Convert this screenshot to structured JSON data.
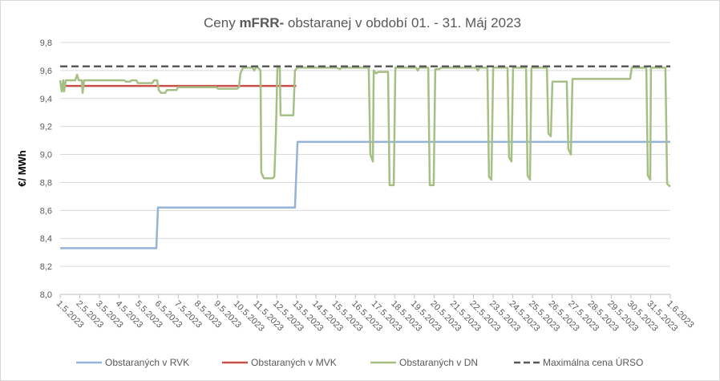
{
  "chart_data": {
    "type": "line",
    "title": [
      "Ceny",
      "mFRR-",
      "obstaranej v období 01. - 31. Máj 2023"
    ],
    "y_label": "€/ MWh",
    "xlim": [
      1,
      32
    ],
    "xticks": [
      {
        "value": 1,
        "label": "1.5.2023"
      },
      {
        "value": 2,
        "label": "2.5.2023"
      },
      {
        "value": 3,
        "label": "3.5.2023"
      },
      {
        "value": 4,
        "label": "4.5.2023"
      },
      {
        "value": 5,
        "label": "5.5.2023"
      },
      {
        "value": 6,
        "label": "6.5.2023"
      },
      {
        "value": 7,
        "label": "7.5.2023"
      },
      {
        "value": 8,
        "label": "8.5.2023"
      },
      {
        "value": 9,
        "label": "9.5.2023"
      },
      {
        "value": 10,
        "label": "10.5.2023"
      },
      {
        "value": 11,
        "label": "11.5.2023"
      },
      {
        "value": 12,
        "label": "12.5.2023"
      },
      {
        "value": 13,
        "label": "13.5.2023"
      },
      {
        "value": 14,
        "label": "14.5.2023"
      },
      {
        "value": 15,
        "label": "15.5.2023"
      },
      {
        "value": 16,
        "label": "16.5.2023"
      },
      {
        "value": 17,
        "label": "17.5.2023"
      },
      {
        "value": 18,
        "label": "18.5.2023"
      },
      {
        "value": 19,
        "label": "19.5.2023"
      },
      {
        "value": 20,
        "label": "20.5.2023"
      },
      {
        "value": 21,
        "label": "21.5.2023"
      },
      {
        "value": 22,
        "label": "22.5.2023"
      },
      {
        "value": 23,
        "label": "23.5.2023"
      },
      {
        "value": 24,
        "label": "24.5.2023"
      },
      {
        "value": 25,
        "label": "25.5.2023"
      },
      {
        "value": 26,
        "label": "26.5.2023"
      },
      {
        "value": 27,
        "label": "27.5.2023"
      },
      {
        "value": 28,
        "label": "28.5.2023"
      },
      {
        "value": 29,
        "label": "29.5.2023"
      },
      {
        "value": 30,
        "label": "30.5.2023"
      },
      {
        "value": 31,
        "label": "31.5.2023"
      },
      {
        "value": 32,
        "label": "1.6.2023"
      }
    ],
    "ylim": [
      8,
      9.8
    ],
    "yticks": [
      {
        "value": 8,
        "label": "8,0"
      },
      {
        "value": 8.2,
        "label": "8,2"
      },
      {
        "value": 8.4,
        "label": "8,4"
      },
      {
        "value": 8.6,
        "label": "8,6"
      },
      {
        "value": 8.8,
        "label": "8,8"
      },
      {
        "value": 9,
        "label": "9,0"
      },
      {
        "value": 9.2,
        "label": "9,2"
      },
      {
        "value": 9.4,
        "label": "9,4"
      },
      {
        "value": 9.6,
        "label": "9,6"
      },
      {
        "value": 9.8,
        "label": "9,8"
      }
    ],
    "grid": true,
    "legend": "bottom",
    "series": [
      {
        "name": "Obstaraných v RVK",
        "color": "#95b3d7",
        "x": [
          1,
          5.89,
          5.97,
          12.93,
          13.06,
          32
        ],
        "values": [
          8.33,
          8.33,
          8.62,
          8.62,
          9.09,
          9.09
        ]
      },
      {
        "name": "Obstaraných v MVK",
        "color": "#c9504a",
        "x": [
          1,
          13
        ],
        "values": [
          9.49,
          9.49
        ]
      },
      {
        "name": "Obstaraných v DN",
        "color": "#a6bf84",
        "x": [
          1.0,
          1.08,
          1.16,
          1.2,
          1.29,
          1.77,
          1.86,
          1.94,
          2.1,
          2.14,
          2.22,
          4.26,
          4.34,
          4.54,
          4.63,
          4.87,
          4.95,
          5.68,
          5.77,
          5.93,
          6.01,
          6.13,
          6.34,
          6.42,
          6.91,
          6.99,
          8.94,
          9.02,
          10.0,
          10.08,
          10.16,
          10.29,
          10.78,
          10.86,
          10.94,
          11.06,
          11.18,
          11.22,
          11.35,
          11.79,
          11.88,
          11.96,
          12.04,
          12.16,
          12.2,
          12.85,
          12.93,
          13.06,
          15.05,
          15.22,
          15.3,
          16.6,
          16.68,
          16.76,
          16.89,
          16.93,
          17.05,
          17.17,
          17.66,
          17.74,
          17.95,
          18.03,
          19.09,
          19.17,
          19.25,
          19.7,
          19.78,
          19.98,
          20.06,
          20.27,
          20.35,
          22.14,
          22.22,
          22.3,
          22.71,
          22.79,
          22.91,
          23.0,
          23.73,
          23.81,
          23.93,
          24.01,
          24.67,
          24.75,
          24.87,
          24.95,
          25.73,
          25.81,
          25.93,
          26.01,
          26.74,
          26.82,
          26.95,
          27.03,
          29.96,
          30.04,
          30.78,
          30.86,
          30.98,
          31.02,
          31.75,
          31.84,
          32.0
        ],
        "values": [
          9.53,
          9.45,
          9.53,
          9.45,
          9.53,
          9.53,
          9.57,
          9.53,
          9.53,
          9.44,
          9.53,
          9.53,
          9.52,
          9.52,
          9.53,
          9.53,
          9.51,
          9.51,
          9.53,
          9.53,
          9.46,
          9.44,
          9.44,
          9.46,
          9.46,
          9.48,
          9.48,
          9.47,
          9.47,
          9.48,
          9.58,
          9.62,
          9.62,
          9.6,
          9.62,
          9.62,
          9.6,
          8.87,
          8.83,
          8.83,
          8.84,
          9.15,
          9.62,
          9.62,
          9.28,
          9.28,
          9.6,
          9.62,
          9.62,
          9.61,
          9.62,
          9.62,
          9.62,
          9.0,
          8.95,
          9.6,
          9.58,
          9.59,
          9.59,
          8.78,
          8.78,
          9.62,
          9.62,
          9.6,
          9.62,
          9.62,
          8.78,
          8.78,
          9.61,
          9.61,
          9.62,
          9.62,
          9.6,
          9.62,
          9.62,
          8.84,
          8.82,
          9.62,
          9.62,
          8.98,
          8.95,
          9.62,
          9.62,
          8.85,
          8.82,
          9.62,
          9.62,
          9.15,
          9.13,
          9.52,
          9.52,
          9.04,
          9.0,
          9.54,
          9.54,
          9.62,
          9.62,
          8.85,
          8.82,
          9.62,
          9.62,
          8.79,
          8.77
        ]
      },
      {
        "name": "Maximálna cena ÚRSO",
        "color": "#595959",
        "dash": true,
        "x": [
          1,
          32
        ],
        "values": [
          9.63,
          9.63
        ]
      }
    ]
  }
}
